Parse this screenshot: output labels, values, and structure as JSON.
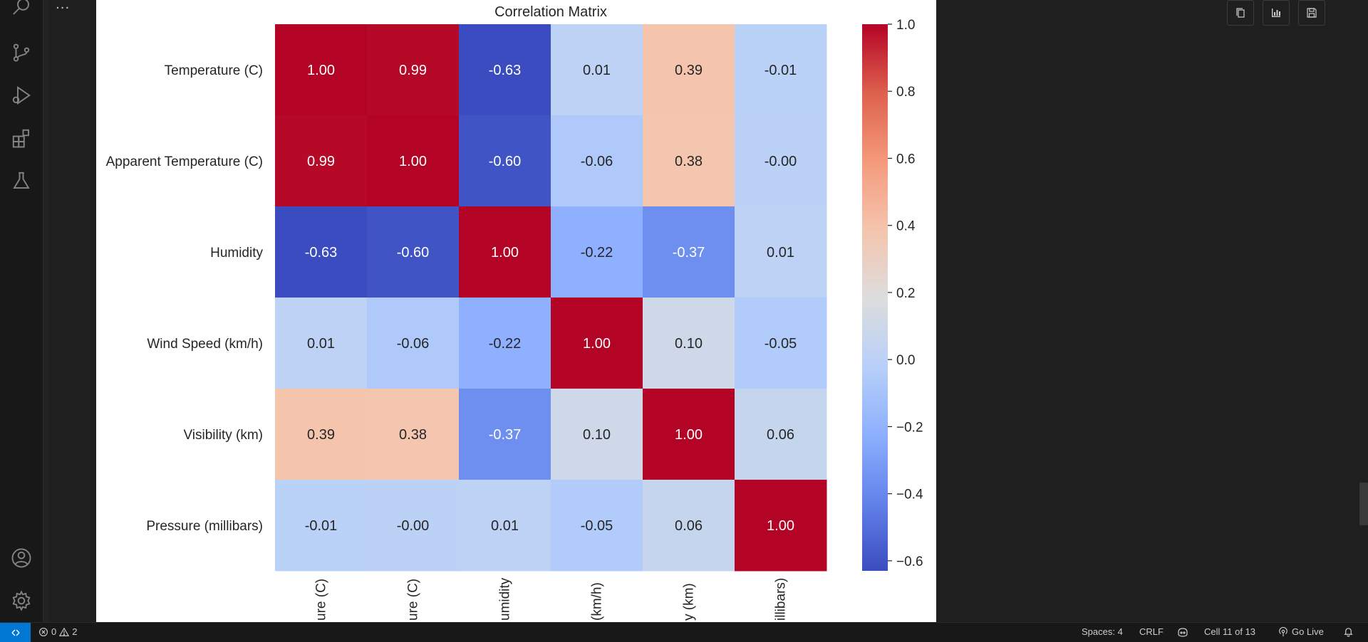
{
  "chart_data": {
    "type": "heatmap",
    "title": "Correlation Matrix",
    "row_labels": [
      "Temperature (C)",
      "Apparent Temperature (C)",
      "Humidity",
      "Wind Speed (km/h)",
      "Visibility (km)",
      "Pressure (millibars)"
    ],
    "col_tick_labels": [
      "ure (C)",
      "ure (C)",
      "umidity",
      "(km/h)",
      "y (km)",
      "illibars)"
    ],
    "values": [
      [
        1.0,
        0.99,
        -0.63,
        0.01,
        0.39,
        -0.01
      ],
      [
        0.99,
        1.0,
        -0.6,
        -0.06,
        0.38,
        -0.0
      ],
      [
        -0.63,
        -0.6,
        1.0,
        -0.22,
        -0.37,
        0.01
      ],
      [
        0.01,
        -0.06,
        -0.22,
        1.0,
        0.1,
        -0.05
      ],
      [
        0.39,
        0.38,
        -0.37,
        0.1,
        1.0,
        0.06
      ],
      [
        -0.01,
        -0.0,
        0.01,
        -0.05,
        0.06,
        1.0
      ]
    ],
    "value_labels": [
      [
        "1.00",
        "0.99",
        "-0.63",
        "0.01",
        "0.39",
        "-0.01"
      ],
      [
        "0.99",
        "1.00",
        "-0.60",
        "-0.06",
        "0.38",
        "-0.00"
      ],
      [
        "-0.63",
        "-0.60",
        "1.00",
        "-0.22",
        "-0.37",
        "0.01"
      ],
      [
        "0.01",
        "-0.06",
        "-0.22",
        "1.00",
        "0.10",
        "-0.05"
      ],
      [
        "0.39",
        "0.38",
        "-0.37",
        "0.10",
        "1.00",
        "0.06"
      ],
      [
        "-0.01",
        "-0.00",
        "0.01",
        "-0.05",
        "0.06",
        "1.00"
      ]
    ],
    "colormap": "coolwarm",
    "vmin": -0.63,
    "vmax": 1.0,
    "colorbar_ticks": [
      "1.0",
      "0.8",
      "0.6",
      "0.4",
      "0.2",
      "0.0",
      "−0.2",
      "−0.4",
      "−0.6"
    ],
    "colorbar_tick_values": [
      1.0,
      0.8,
      0.6,
      0.4,
      0.2,
      0.0,
      -0.2,
      -0.4,
      -0.6
    ],
    "grid": false
  },
  "toolbar": {
    "icons": [
      "copy-icon",
      "chart-icon",
      "save-icon"
    ]
  },
  "activity_bar": {
    "icons": [
      "search-icon",
      "source-control-icon",
      "run-debug-icon",
      "extensions-icon",
      "testing-icon",
      "account-icon",
      "settings-gear-icon"
    ]
  },
  "editor": {
    "more_actions": "..."
  },
  "status_bar": {
    "errors": "0",
    "warnings": "2",
    "spaces": "Spaces: 4",
    "eol": "CRLF",
    "cell": "Cell 11 of 13",
    "go_live": "Go Live"
  },
  "colors": {
    "status_remote": "#0078d4",
    "background": "#1f1f1f"
  }
}
